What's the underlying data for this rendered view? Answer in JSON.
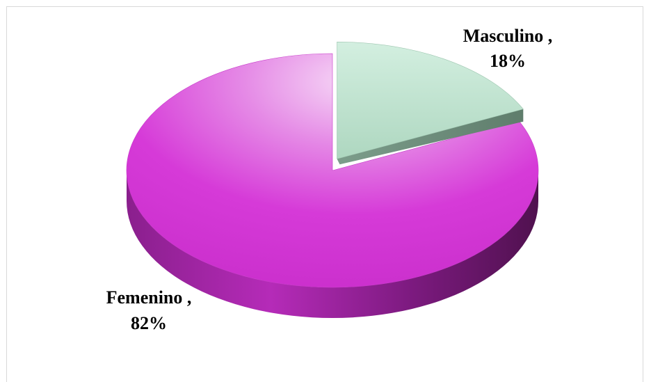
{
  "chart_data": {
    "type": "pie",
    "style": "3d",
    "exploded": "Masculino",
    "categories": [
      "Femenino",
      "Masculino"
    ],
    "values": [
      82,
      18
    ],
    "unit": "%",
    "colors": {
      "Femenino": "#d63ad8",
      "Masculino": "#bde6cf"
    },
    "data_labels": [
      {
        "name": "Masculino ,",
        "value": "18%"
      },
      {
        "name": "Femenino ,",
        "value": "82%"
      }
    ]
  }
}
